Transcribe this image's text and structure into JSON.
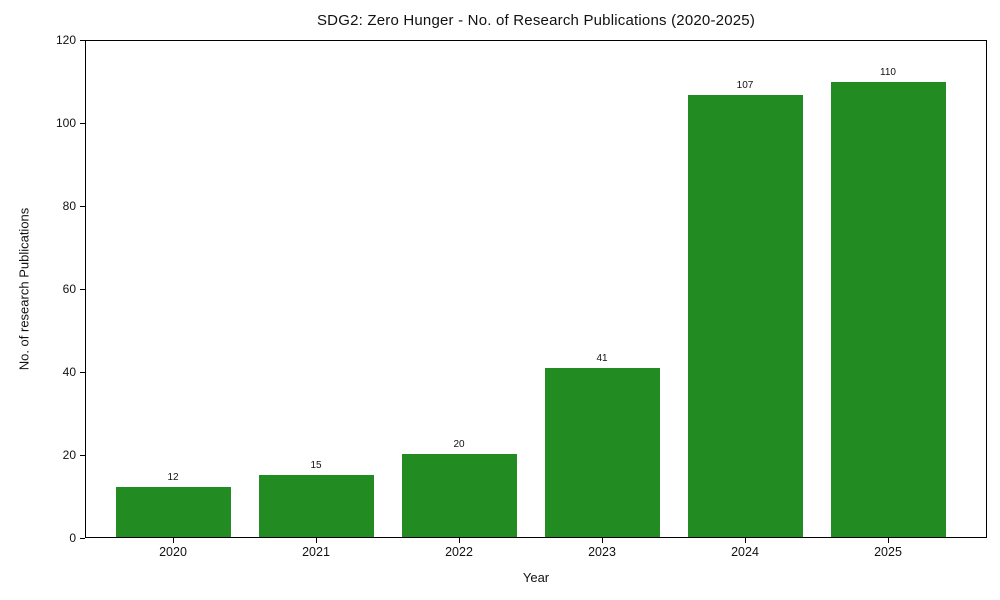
{
  "chart_data": {
    "type": "bar",
    "title": "SDG2: Zero Hunger - No. of Research Publications (2020-2025)",
    "xlabel": "Year",
    "ylabel": "No. of research Publications",
    "categories": [
      "2020",
      "2021",
      "2022",
      "2023",
      "2024",
      "2025"
    ],
    "values": [
      12,
      15,
      20,
      41,
      107,
      110
    ],
    "value_labels": [
      "12",
      "15",
      "20",
      "41",
      "107",
      "110"
    ],
    "ylim": [
      0,
      120
    ],
    "yticks": [
      0,
      20,
      40,
      60,
      80,
      100,
      120
    ],
    "bar_color": "#228B22",
    "axis_color": "#000000",
    "text_color": "#111111",
    "background_color": "#ffffff",
    "grid": false,
    "legend_position": "none"
  }
}
